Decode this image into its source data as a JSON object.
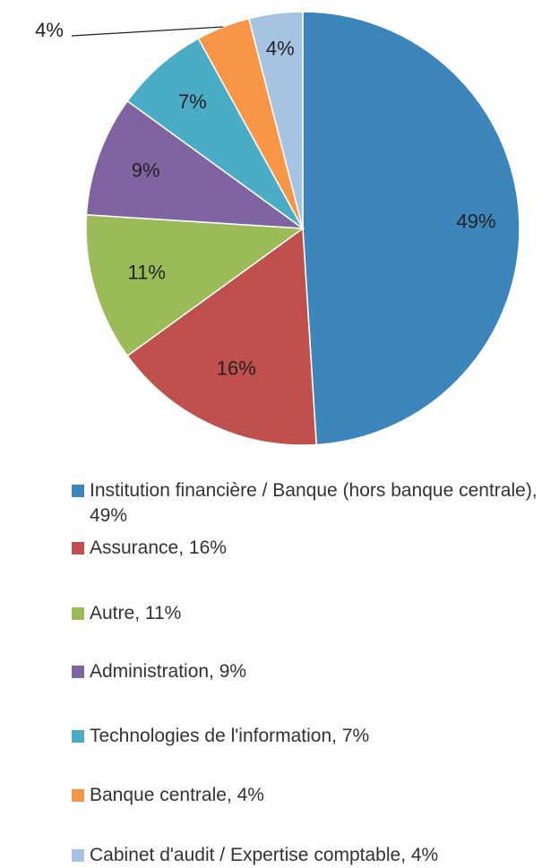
{
  "chart_data": {
    "type": "pie",
    "categories": [
      "Institution financière / Banque (hors banque centrale), 49%",
      "Assurance, 16%",
      "Autre, 11%",
      "Administration, 9%",
      "Technologies de l'information, 7%",
      "Banque centrale, 4%",
      "Cabinet d'audit / Expertise comptable, 4%"
    ],
    "values": [
      49,
      16,
      11,
      9,
      7,
      4,
      4
    ],
    "value_labels": [
      "49%",
      "16%",
      "11%",
      "9%",
      "7%",
      "4%",
      "4%"
    ],
    "colors": [
      "#3d86bc",
      "#c0504d",
      "#9bbb59",
      "#8064a2",
      "#4bacc6",
      "#f79646",
      "#a7c3e2"
    ]
  }
}
